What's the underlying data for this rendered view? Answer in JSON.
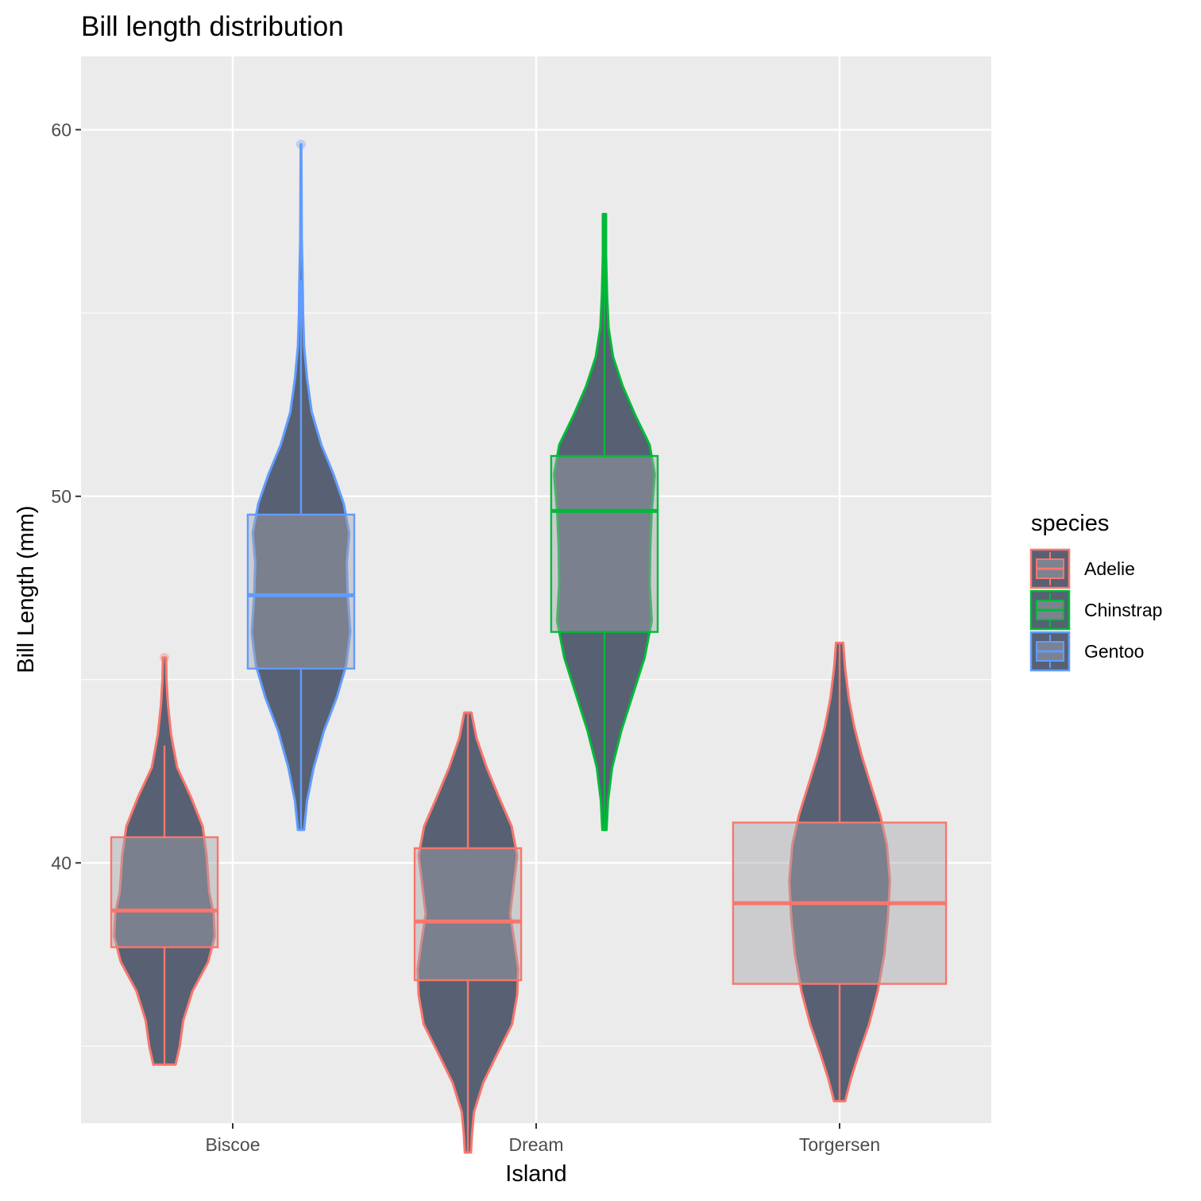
{
  "chart_data": {
    "type": "violin",
    "title": "Bill length distribution",
    "xlabel": "Island",
    "ylabel": "Bill Length (mm)",
    "categories": [
      "Biscoe",
      "Dream",
      "Torgersen"
    ],
    "ylim": [
      32.9,
      62.0
    ],
    "yticks": [
      40,
      50,
      60
    ],
    "grid": true,
    "legend": {
      "title": "species",
      "position": "right",
      "entries": [
        "Adelie",
        "Chinstrap",
        "Gentoo"
      ]
    },
    "colors": {
      "Adelie": "#F8766D",
      "Chinstrap": "#00BA38",
      "Gentoo": "#619CFF",
      "violin_fill": "#576173",
      "box_fill": "#7d8290",
      "panel": "#EBEBEB"
    },
    "series": [
      {
        "name": "Adelie",
        "island": "Biscoe",
        "min": 34.5,
        "q1": 37.7,
        "median": 38.7,
        "q3": 40.7,
        "whisker_low": 34.5,
        "whisker_high": 43.2,
        "max": 45.6,
        "outliers": [
          45.6
        ],
        "density": [
          [
            34.5,
            0.22
          ],
          [
            35.0,
            0.3
          ],
          [
            35.7,
            0.37
          ],
          [
            36.5,
            0.55
          ],
          [
            37.3,
            0.86
          ],
          [
            38.0,
            0.99
          ],
          [
            38.6,
            0.97
          ],
          [
            39.2,
            0.88
          ],
          [
            40.2,
            0.83
          ],
          [
            41.0,
            0.75
          ],
          [
            41.8,
            0.52
          ],
          [
            42.6,
            0.25
          ],
          [
            43.5,
            0.13
          ],
          [
            44.3,
            0.07
          ],
          [
            45.0,
            0.04
          ],
          [
            45.6,
            0.03
          ]
        ]
      },
      {
        "name": "Gentoo",
        "island": "Biscoe",
        "min": 40.9,
        "q1": 45.3,
        "median": 47.3,
        "q3": 49.5,
        "whisker_low": 40.9,
        "whisker_high": 55.9,
        "max": 59.6,
        "outliers": [
          59.6
        ],
        "density": [
          [
            40.9,
            0.06
          ],
          [
            41.7,
            0.12
          ],
          [
            42.6,
            0.25
          ],
          [
            43.6,
            0.45
          ],
          [
            44.5,
            0.7
          ],
          [
            45.4,
            0.89
          ],
          [
            46.3,
            0.97
          ],
          [
            47.3,
            0.92
          ],
          [
            48.2,
            0.9
          ],
          [
            49.0,
            0.95
          ],
          [
            49.8,
            0.84
          ],
          [
            50.6,
            0.64
          ],
          [
            51.4,
            0.4
          ],
          [
            52.3,
            0.21
          ],
          [
            53.2,
            0.12
          ],
          [
            54.1,
            0.06
          ],
          [
            55.0,
            0.04
          ],
          [
            56.0,
            0.03
          ],
          [
            57.0,
            0.015
          ],
          [
            58.3,
            0.01
          ],
          [
            59.6,
            0.005
          ]
        ]
      },
      {
        "name": "Adelie",
        "island": "Dream",
        "min": 32.1,
        "q1": 36.8,
        "median": 38.4,
        "q3": 40.4,
        "whisker_low": 32.1,
        "whisker_high": 44.1,
        "max": 44.1,
        "outliers": [],
        "density": [
          [
            32.1,
            0.06
          ],
          [
            32.6,
            0.08
          ],
          [
            33.2,
            0.12
          ],
          [
            34.0,
            0.3
          ],
          [
            34.8,
            0.58
          ],
          [
            35.6,
            0.87
          ],
          [
            36.4,
            0.97
          ],
          [
            37.1,
            0.99
          ],
          [
            37.8,
            0.92
          ],
          [
            38.6,
            0.83
          ],
          [
            39.4,
            0.9
          ],
          [
            40.2,
            0.97
          ],
          [
            41.0,
            0.86
          ],
          [
            41.8,
            0.61
          ],
          [
            42.6,
            0.37
          ],
          [
            43.4,
            0.17
          ],
          [
            44.1,
            0.07
          ]
        ]
      },
      {
        "name": "Chinstrap",
        "island": "Dream",
        "min": 40.9,
        "q1": 46.3,
        "median": 49.6,
        "q3": 51.1,
        "whisker_low": 40.9,
        "whisker_high": 57.7,
        "max": 57.7,
        "outliers": [],
        "density": [
          [
            40.9,
            0.04
          ],
          [
            41.7,
            0.07
          ],
          [
            42.6,
            0.15
          ],
          [
            43.6,
            0.33
          ],
          [
            44.6,
            0.56
          ],
          [
            45.6,
            0.79
          ],
          [
            46.6,
            0.93
          ],
          [
            47.6,
            0.89
          ],
          [
            48.6,
            0.9
          ],
          [
            49.6,
            0.93
          ],
          [
            50.6,
            0.99
          ],
          [
            51.4,
            0.89
          ],
          [
            52.2,
            0.61
          ],
          [
            53.0,
            0.36
          ],
          [
            53.8,
            0.17
          ],
          [
            54.6,
            0.08
          ],
          [
            55.5,
            0.05
          ],
          [
            56.6,
            0.03
          ],
          [
            57.7,
            0.03
          ]
        ]
      },
      {
        "name": "Adelie",
        "island": "Torgersen",
        "min": 33.5,
        "q1": 36.7,
        "median": 38.9,
        "q3": 41.1,
        "whisker_low": 33.5,
        "whisker_high": 46.0,
        "max": 46.0,
        "outliers": [],
        "density": [
          [
            33.5,
            0.11
          ],
          [
            34.1,
            0.22
          ],
          [
            34.8,
            0.38
          ],
          [
            35.6,
            0.58
          ],
          [
            36.5,
            0.75
          ],
          [
            37.5,
            0.88
          ],
          [
            38.5,
            0.95
          ],
          [
            39.5,
            0.99
          ],
          [
            40.5,
            0.93
          ],
          [
            41.3,
            0.8
          ],
          [
            42.1,
            0.62
          ],
          [
            42.9,
            0.44
          ],
          [
            43.7,
            0.29
          ],
          [
            44.5,
            0.18
          ],
          [
            45.3,
            0.11
          ],
          [
            46.0,
            0.07
          ]
        ]
      }
    ]
  }
}
